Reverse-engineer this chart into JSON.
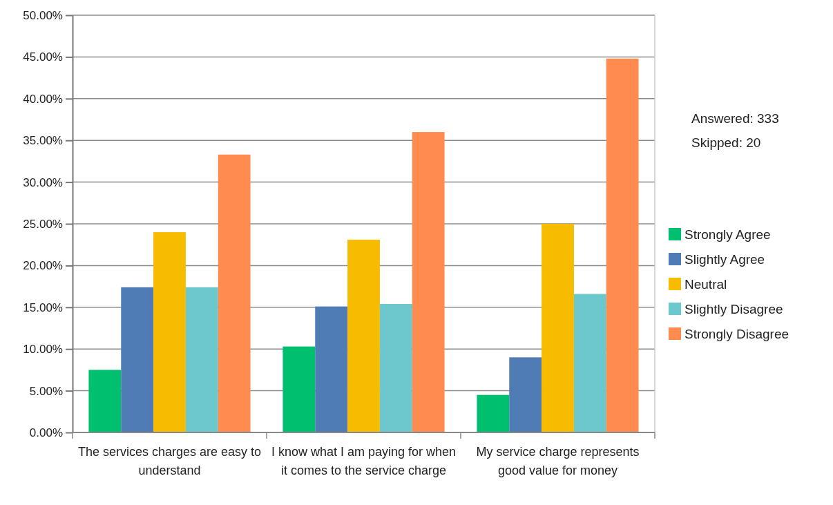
{
  "chart_data": {
    "type": "bar",
    "categories": [
      "The services charges are easy to understand",
      "I know what I am paying for when it comes to the service charge",
      "My service charge represents good value for money"
    ],
    "series": [
      {
        "name": "Strongly Agree",
        "color": "#00bf6f",
        "values": [
          7.5,
          10.3,
          4.5
        ]
      },
      {
        "name": "Slightly Agree",
        "color": "#507cb6",
        "values": [
          17.4,
          15.1,
          9.0
        ]
      },
      {
        "name": "Neutral",
        "color": "#f7bc00",
        "values": [
          24.0,
          23.1,
          25.0
        ]
      },
      {
        "name": "Slightly Disagree",
        "color": "#6cc8cd",
        "values": [
          17.4,
          15.4,
          16.6
        ]
      },
      {
        "name": "Strongly Disagree",
        "color": "#ff8b4f",
        "values": [
          33.3,
          36.0,
          44.8
        ]
      }
    ],
    "ylim": [
      0,
      50
    ],
    "yticks": [
      {
        "value": 0,
        "label": "0.00%"
      },
      {
        "value": 5,
        "label": "5.00%"
      },
      {
        "value": 10,
        "label": "10.00%"
      },
      {
        "value": 15,
        "label": "15.00%"
      },
      {
        "value": 20,
        "label": "20.00%"
      },
      {
        "value": 25,
        "label": "25.00%"
      },
      {
        "value": 30,
        "label": "30.00%"
      },
      {
        "value": 35,
        "label": "35.00%"
      },
      {
        "value": 40,
        "label": "40.00%"
      },
      {
        "value": 45,
        "label": "45.00%"
      },
      {
        "value": 50,
        "label": "50.00%"
      }
    ],
    "grid": "y",
    "legend": "right",
    "annotations": [
      "Answered: 333",
      "Skipped: 20"
    ]
  }
}
